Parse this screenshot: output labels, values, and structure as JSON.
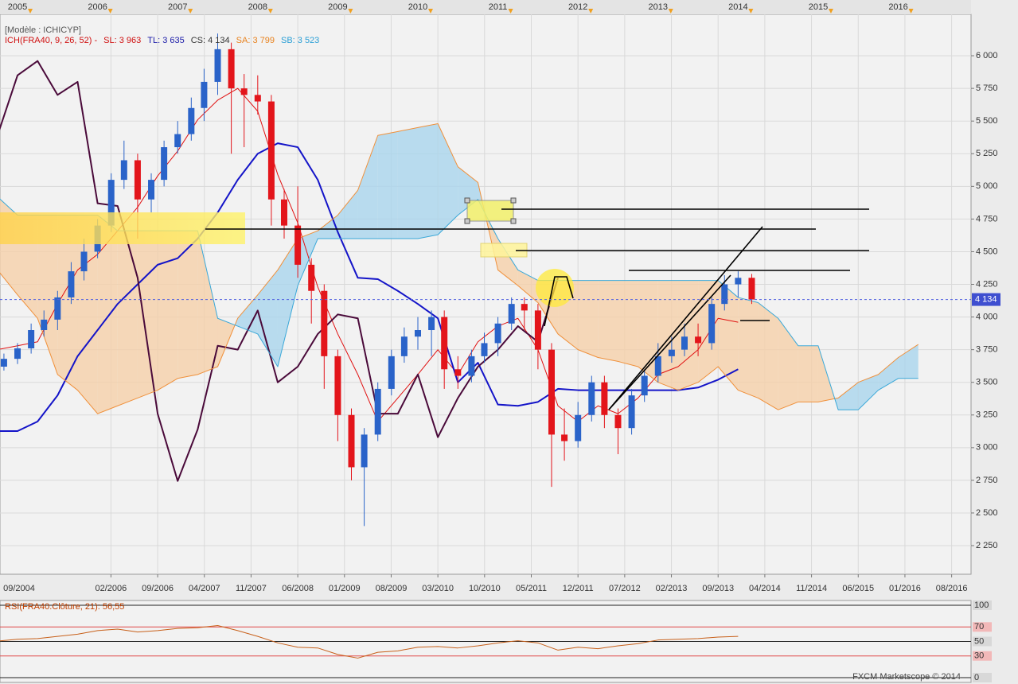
{
  "chart_data": [
    {
      "type": "candlestick",
      "title": "[Modèle : ICHICYP]",
      "subtitle": "ICH(FRA40, 9, 26, 52) -",
      "subtitle_color": "#d01010",
      "legend": [
        {
          "label": "SL: 3 963",
          "color": "#d01010"
        },
        {
          "label": "TL: 3 635",
          "color": "#1a1aa8"
        },
        {
          "label": "CS: 4 134",
          "color": "#333333"
        },
        {
          "label": "SA: 3 799",
          "color": "#e8821e"
        },
        {
          "label": "SB: 3 523",
          "color": "#2a9fd6"
        }
      ],
      "xlim": [
        2004.781,
        2016.909
      ],
      "ylim": [
        2031,
        6317
      ],
      "grid": true,
      "yticks": [
        {
          "value": 2250,
          "label": "2 250"
        },
        {
          "value": 2500,
          "label": "2 500"
        },
        {
          "value": 2750,
          "label": "2 750"
        },
        {
          "value": 3000,
          "label": "3 000"
        },
        {
          "value": 3250,
          "label": "3 250"
        },
        {
          "value": 3500,
          "label": "3 500"
        },
        {
          "value": 3750,
          "label": "3 750"
        },
        {
          "value": 4000,
          "label": "4 000"
        },
        {
          "value": 4250,
          "label": "4 250"
        },
        {
          "value": 4500,
          "label": "4 500"
        },
        {
          "value": 4750,
          "label": "4 750"
        },
        {
          "value": 5000,
          "label": "5 000"
        },
        {
          "value": 5250,
          "label": "5 250"
        },
        {
          "value": 5500,
          "label": "5 500"
        },
        {
          "value": 5750,
          "label": "5 750"
        },
        {
          "value": 6000,
          "label": "6 000"
        }
      ],
      "xticks": [
        {
          "value": 2004.75,
          "label": "09/2004"
        },
        {
          "value": 2006.1667,
          "label": "02/2006"
        },
        {
          "value": 2006.75,
          "label": "09/2006"
        },
        {
          "value": 2007.3333,
          "label": "04/2007"
        },
        {
          "value": 2007.9167,
          "label": "11/2007"
        },
        {
          "value": 2008.5,
          "label": "06/2008"
        },
        {
          "value": 2009.0833,
          "label": "01/2009"
        },
        {
          "value": 2009.6667,
          "label": "08/2009"
        },
        {
          "value": 2010.25,
          "label": "03/2010"
        },
        {
          "value": 2010.8333,
          "label": "10/2010"
        },
        {
          "value": 2011.4167,
          "label": "05/2011"
        },
        {
          "value": 2012.0,
          "label": "12/2011"
        },
        {
          "value": 2012.5833,
          "label": "07/2012"
        },
        {
          "value": 2013.1667,
          "label": "02/2013"
        },
        {
          "value": 2013.75,
          "label": "09/2013"
        },
        {
          "value": 2014.3333,
          "label": "04/2014"
        },
        {
          "value": 2014.9167,
          "label": "11/2014"
        },
        {
          "value": 2015.5,
          "label": "06/2015"
        },
        {
          "value": 2016.0833,
          "label": "01/2016"
        },
        {
          "value": 2016.6667,
          "label": "08/2016"
        }
      ],
      "x2ticks": [
        2005,
        2006,
        2007,
        2008,
        2009,
        2010,
        2011,
        2012,
        2013,
        2014,
        2015,
        2016
      ],
      "last_price": {
        "value": 4134,
        "label": "4 134"
      },
      "candles": {
        "up_color": "#2a63c9",
        "down_color": "#e3151b",
        "x": [
          2004.83,
          2005.0,
          2005.17,
          2005.33,
          2005.5,
          2005.67,
          2005.83,
          2006.0,
          2006.17,
          2006.33,
          2006.5,
          2006.67,
          2006.83,
          2007.0,
          2007.17,
          2007.33,
          2007.5,
          2007.67,
          2007.83,
          2008.0,
          2008.17,
          2008.33,
          2008.5,
          2008.67,
          2008.83,
          2009.0,
          2009.17,
          2009.33,
          2009.5,
          2009.67,
          2009.83,
          2010.0,
          2010.17,
          2010.33,
          2010.5,
          2010.67,
          2010.83,
          2011.0,
          2011.17,
          2011.33,
          2011.5,
          2011.67,
          2011.83,
          2012.0,
          2012.17,
          2012.33,
          2012.5,
          2012.67,
          2012.83,
          2013.0,
          2013.17,
          2013.33,
          2013.5,
          2013.67,
          2013.83,
          2014.0,
          2014.17
        ],
        "open": [
          3620,
          3680,
          3760,
          3900,
          3980,
          4150,
          4350,
          4500,
          4700,
          5050,
          5200,
          4900,
          5050,
          5300,
          5400,
          5600,
          5800,
          6050,
          5750,
          5700,
          5650,
          4900,
          4700,
          4400,
          4200,
          3700,
          3250,
          2850,
          3100,
          3450,
          3700,
          3850,
          3900,
          4000,
          3600,
          3550,
          3700,
          3800,
          3950,
          4100,
          4050,
          3750,
          3100,
          3050,
          3250,
          3500,
          3250,
          3150,
          3400,
          3550,
          3700,
          3750,
          3850,
          3800,
          4100,
          4250,
          4300
        ],
        "high": [
          3720,
          3800,
          3950,
          4050,
          4200,
          4420,
          4600,
          4750,
          5100,
          5350,
          5250,
          5100,
          5350,
          5500,
          5680,
          5900,
          6170,
          6100,
          5860,
          5850,
          5700,
          4980,
          5000,
          4450,
          4250,
          3750,
          3300,
          3150,
          3500,
          3750,
          3920,
          4000,
          4050,
          4050,
          3700,
          3750,
          3880,
          4000,
          4150,
          4150,
          4100,
          3800,
          3300,
          3350,
          3550,
          3550,
          3300,
          3450,
          3600,
          3800,
          3850,
          3950,
          3950,
          4150,
          4320,
          4350,
          4330
        ],
        "low": [
          3590,
          3640,
          3720,
          3850,
          3900,
          4100,
          4280,
          4450,
          4650,
          4980,
          4600,
          4800,
          5000,
          5250,
          5350,
          5500,
          5700,
          5250,
          5300,
          5550,
          4700,
          4600,
          4300,
          3950,
          3450,
          3050,
          2750,
          2400,
          3050,
          3400,
          3650,
          3750,
          3700,
          3450,
          3450,
          3500,
          3650,
          3700,
          3900,
          3900,
          3600,
          2700,
          2900,
          3000,
          3200,
          3150,
          2950,
          3100,
          3350,
          3500,
          3650,
          3700,
          3700,
          3750,
          4050,
          4150,
          4100
        ],
        "close": [
          3680,
          3760,
          3900,
          3980,
          4150,
          4350,
          4500,
          4700,
          5050,
          5200,
          4900,
          5050,
          5300,
          5400,
          5600,
          5800,
          6050,
          5750,
          5700,
          5650,
          4900,
          4700,
          4400,
          4200,
          3700,
          3250,
          2850,
          3100,
          3450,
          3700,
          3850,
          3900,
          4000,
          3600,
          3550,
          3700,
          3800,
          3950,
          4100,
          4050,
          3750,
          3100,
          3050,
          3250,
          3500,
          3250,
          3150,
          3400,
          3550,
          3700,
          3750,
          3850,
          3800,
          4100,
          4250,
          4300,
          4134
        ]
      },
      "x": [
        2004.75,
        2005.0,
        2005.25,
        2005.5,
        2005.75,
        2006.0,
        2006.25,
        2006.5,
        2006.75,
        2007.0,
        2007.25,
        2007.5,
        2007.75,
        2008.0,
        2008.25,
        2008.5,
        2008.75,
        2009.0,
        2009.25,
        2009.5,
        2009.75,
        2010.0,
        2010.25,
        2010.5,
        2010.75,
        2011.0,
        2011.25,
        2011.5,
        2011.75,
        2012.0,
        2012.25,
        2012.5,
        2012.75,
        2013.0,
        2013.25,
        2013.5,
        2013.75,
        2014.0,
        2014.25,
        2014.5,
        2014.75,
        2015.0,
        2015.25,
        2015.5,
        2015.75,
        2016.0,
        2016.25,
        2016.5
      ],
      "cloud_colors": [
        "#a9d5ec",
        "#f5cfa9"
      ],
      "series": [
        {
          "color": "#e01010",
          "width": 1,
          "values": [
            3750,
            3780,
            3810,
            4100,
            4360,
            4480,
            4660,
            4840,
            5080,
            5270,
            5510,
            5660,
            5750,
            5575,
            5090,
            4720,
            4230,
            3870,
            3560,
            3200,
            3380,
            3560,
            3750,
            3560,
            3810,
            3930,
            3990,
            3750,
            3320,
            3200,
            3320,
            3260,
            3380,
            3560,
            3620,
            3750,
            3990,
            3960,
            null,
            null,
            null,
            null,
            null,
            null,
            null,
            null,
            null,
            null
          ]
        },
        {
          "color": "#1414c8",
          "width": 2,
          "values": [
            3127,
            3127,
            3200,
            3400,
            3700,
            3900,
            4100,
            4250,
            4400,
            4450,
            4600,
            4800,
            5050,
            5250,
            5330,
            5300,
            5050,
            4650,
            4300,
            4290,
            4200,
            4100,
            3990,
            3500,
            3650,
            3330,
            3320,
            3350,
            3450,
            3440,
            3440,
            3440,
            3440,
            3440,
            3440,
            3460,
            3520,
            3600,
            null,
            null,
            null,
            null,
            null,
            null,
            null,
            null,
            null,
            null
          ]
        },
        {
          "color": "#4a0a3a",
          "width": 2,
          "values": [
            5390,
            5850,
            5960,
            5700,
            5800,
            4870,
            4850,
            4300,
            3260,
            2745,
            3140,
            3780,
            3750,
            4050,
            3500,
            3620,
            3870,
            4020,
            3990,
            3260,
            3260,
            3560,
            3080,
            3380,
            3620,
            3750,
            3930,
            3810,
            4300,
            null,
            null,
            null,
            null,
            null,
            null,
            null,
            null,
            null,
            null,
            null,
            null,
            null,
            null,
            null,
            null,
            null,
            null,
            null
          ]
        },
        {
          "color": "#f0903a",
          "width": 1,
          "values": [
            4360,
            4170,
            3990,
            3560,
            3440,
            3260,
            3320,
            3380,
            3440,
            3530,
            3560,
            3620,
            3990,
            4170,
            4360,
            4600,
            4660,
            4780,
            4970,
            5390,
            5420,
            5450,
            5480,
            5150,
            5030,
            4360,
            4240,
            4110,
            3870,
            3750,
            3690,
            3660,
            3620,
            3500,
            3440,
            3500,
            3620,
            3440,
            3380,
            3290,
            3350,
            3350,
            3380,
            3500,
            3560,
            3690,
            3790,
            null
          ]
        },
        {
          "color": "#3aa8d8",
          "width": 1,
          "values": [
            4920,
            4780,
            4780,
            4780,
            4780,
            4780,
            4660,
            4660,
            4660,
            4660,
            4660,
            3990,
            3930,
            3870,
            3620,
            4240,
            4600,
            4600,
            4600,
            4600,
            4600,
            4600,
            4630,
            4780,
            4900,
            4600,
            4360,
            4280,
            4280,
            4280,
            4280,
            4280,
            4280,
            4280,
            4280,
            4280,
            4280,
            4150,
            4110,
            3990,
            3780,
            3780,
            3290,
            3290,
            3440,
            3530,
            3530,
            null
          ]
        }
      ]
    },
    {
      "type": "line",
      "title": "RSI(FRA40.Clôture, 21): 56,55",
      "color": "#c8601a",
      "ylim": [
        0,
        100
      ],
      "yticks": [
        0,
        30,
        50,
        70,
        100
      ],
      "tick_line_colors": [
        "#222222",
        "#e04848",
        "#222222",
        "#e04848",
        "#222222"
      ],
      "tick_box_colors": [
        "#d8d8d8",
        "#f2b8b8",
        "#d8d8d8",
        "#f2b8b8",
        "#d8d8d8"
      ],
      "x": [
        2004.75,
        2005.0,
        2005.25,
        2005.5,
        2005.75,
        2006.0,
        2006.25,
        2006.5,
        2006.75,
        2007.0,
        2007.25,
        2007.5,
        2007.75,
        2008.0,
        2008.25,
        2008.5,
        2008.75,
        2009.0,
        2009.25,
        2009.5,
        2009.75,
        2010.0,
        2010.25,
        2010.5,
        2010.75,
        2011.0,
        2011.25,
        2011.5,
        2011.75,
        2012.0,
        2012.25,
        2012.5,
        2012.75,
        2013.0,
        2013.25,
        2013.5,
        2013.75,
        2014.0
      ],
      "values": [
        50.5,
        53,
        54,
        57,
        60,
        65,
        67,
        63,
        65,
        68,
        69,
        72,
        65,
        57,
        48,
        42,
        41,
        32,
        27,
        35,
        37,
        42,
        43,
        41,
        44,
        48,
        51,
        48,
        38,
        42,
        40,
        44,
        47,
        52,
        53,
        54,
        56,
        57
      ]
    }
  ],
  "footer": "FXCM Marketscope © 2014"
}
